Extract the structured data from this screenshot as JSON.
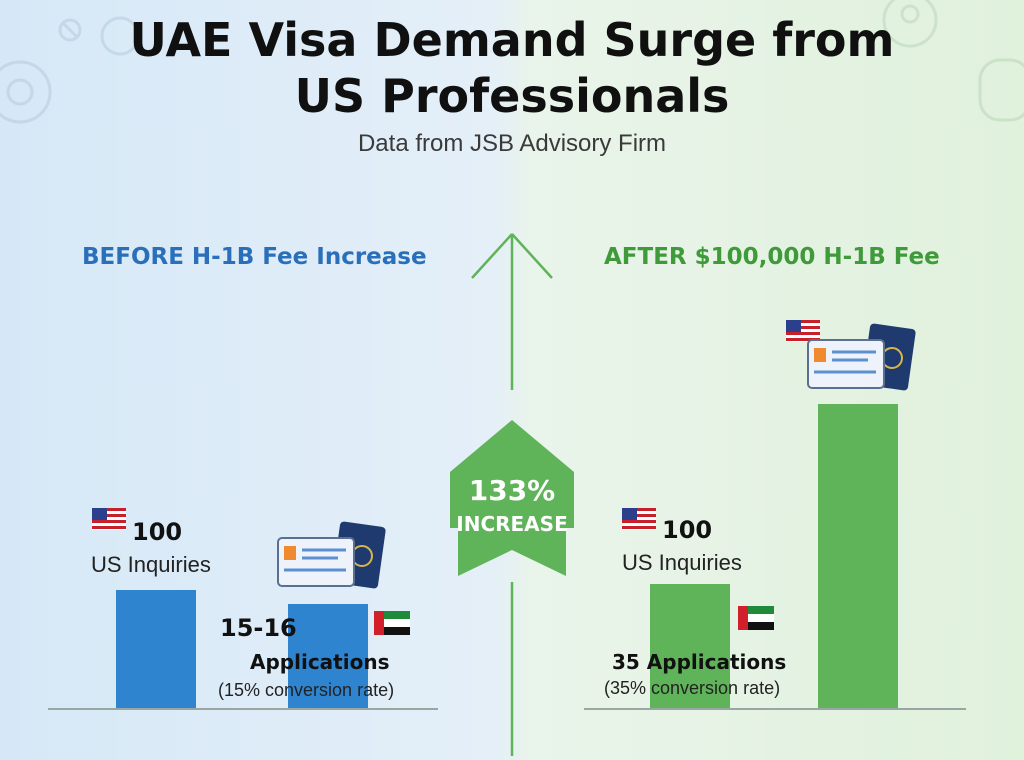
{
  "header": {
    "title_line1": "UAE Visa Demand Surge from",
    "title_line2": "US Professionals",
    "subtitle": "Data from JSB Advisory Firm"
  },
  "sections": {
    "before": "BEFORE H-1B Fee Increase",
    "after": "AFTER $100,000 H-1B Fee"
  },
  "before": {
    "inquiries_value": "100",
    "inquiries_label": "US Inquiries",
    "applications_value": "15-16",
    "applications_label": "Applications",
    "conversion_note": "(15% conversion rate)"
  },
  "after": {
    "inquiries_value": "100",
    "inquiries_label": "US Inquiries",
    "applications_label": "35 Applications",
    "conversion_note": "(35% conversion rate)"
  },
  "increase": {
    "value": "133%",
    "label": "INCREASE"
  },
  "colors": {
    "before_bar": "#2f84d0",
    "after_bar": "#5fb358",
    "before_text": "#2a6fba",
    "after_text": "#3f9a3a"
  },
  "chart_data": {
    "type": "bar",
    "title": "UAE Visa Demand Surge from US Professionals",
    "subtitle": "Data from JSB Advisory Firm",
    "groups": [
      {
        "name": "BEFORE H-1B Fee Increase",
        "categories": [
          "US Inquiries",
          "Applications"
        ],
        "values": [
          100,
          15.5
        ],
        "conversion_rate_pct": 15
      },
      {
        "name": "AFTER $100,000 H-1B Fee",
        "categories": [
          "US Inquiries",
          "Applications"
        ],
        "values": [
          100,
          35
        ],
        "conversion_rate_pct": 35
      }
    ],
    "annotation": "133% INCREASE"
  }
}
